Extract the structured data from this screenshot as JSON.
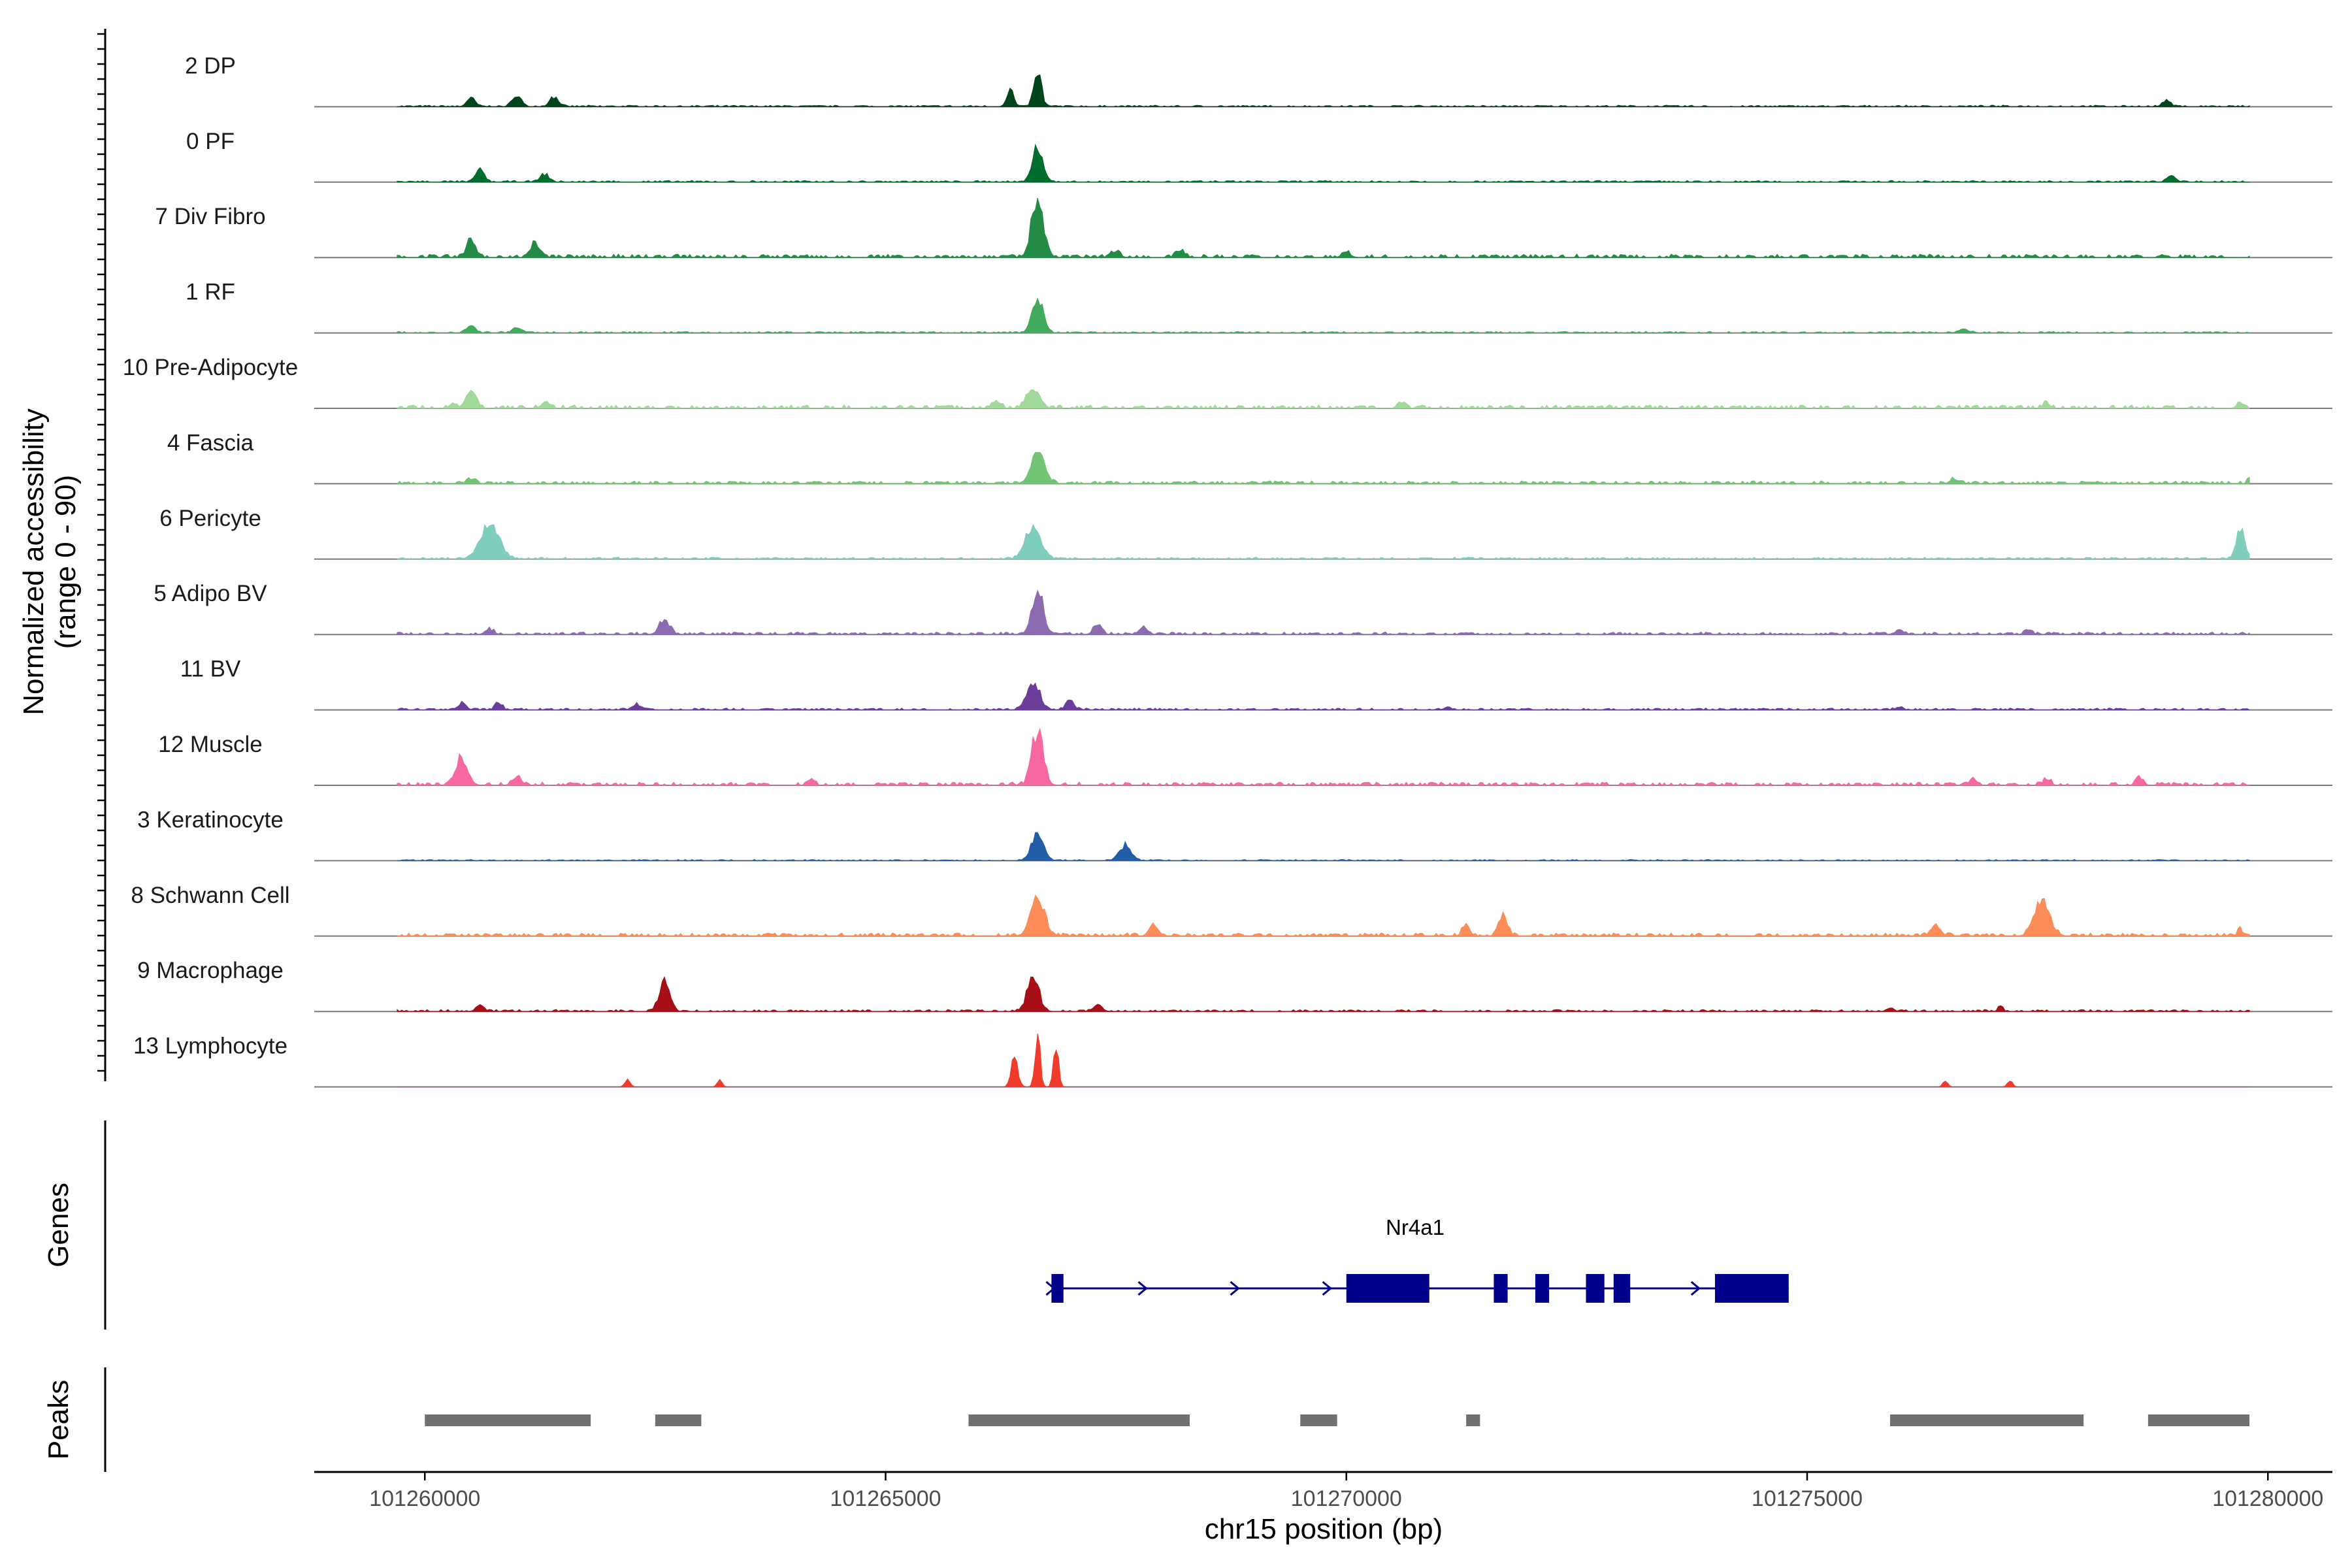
{
  "chart_data": {
    "type": "area",
    "region": {
      "chrom": "chr15",
      "start": 101258800,
      "end": 101280700
    },
    "xlabel": "chr15 position (bp)",
    "x_ticks": [
      101260000,
      101265000,
      101270000,
      101275000,
      101280000
    ],
    "x_tick_labels": [
      "101260000",
      "101265000",
      "101270000",
      "101275000",
      "101280000"
    ],
    "ylabel_line1": "Normalized accessibility",
    "ylabel_line2": "(range 0 - 90)",
    "ylim": [
      0,
      90
    ],
    "genes_label": "Genes",
    "peaks_label": "Peaks",
    "tracks": [
      {
        "name": "2 DP",
        "color": "#00441b",
        "max_frac": 0.55,
        "peaks": [
          [
            101260500,
            0.25,
            0.1
          ],
          [
            101261000,
            0.35,
            0.1
          ],
          [
            101261400,
            0.28,
            0.1
          ],
          [
            101266650,
            1.0,
            0.09
          ],
          [
            101266350,
            0.5,
            0.08
          ],
          [
            101278900,
            0.15,
            0.1
          ]
        ],
        "baseline": 0.04
      },
      {
        "name": "0 PF",
        "color": "#006d2c",
        "max_frac": 0.6,
        "peaks": [
          [
            101260600,
            0.35,
            0.1
          ],
          [
            101261300,
            0.2,
            0.1
          ],
          [
            101266650,
            1.0,
            0.12
          ],
          [
            101278950,
            0.18,
            0.1
          ]
        ],
        "baseline": 0.04
      },
      {
        "name": "7 Div Fibro",
        "color": "#238b45",
        "max_frac": 0.95,
        "peaks": [
          [
            101260500,
            0.3,
            0.1
          ],
          [
            101261200,
            0.25,
            0.1
          ],
          [
            101266650,
            1.0,
            0.14
          ],
          [
            101267500,
            0.1,
            0.1
          ],
          [
            101268200,
            0.1,
            0.1
          ],
          [
            101270000,
            0.07,
            0.1
          ]
        ],
        "baseline": 0.05
      },
      {
        "name": "1 RF",
        "color": "#41ab5d",
        "max_frac": 0.55,
        "peaks": [
          [
            101260500,
            0.2,
            0.1
          ],
          [
            101261000,
            0.15,
            0.1
          ],
          [
            101266650,
            1.0,
            0.13
          ],
          [
            101276700,
            0.1,
            0.12
          ]
        ],
        "baseline": 0.04
      },
      {
        "name": "10 Pre-Adipocyte",
        "color": "#a1d99b",
        "max_frac": 0.4,
        "peaks": [
          [
            101260300,
            0.15,
            0.08
          ],
          [
            101260500,
            0.65,
            0.12
          ],
          [
            101261300,
            0.2,
            0.1
          ],
          [
            101266600,
            0.8,
            0.15
          ],
          [
            101266200,
            0.3,
            0.1
          ],
          [
            101270600,
            0.2,
            0.1
          ],
          [
            101277600,
            0.2,
            0.08
          ],
          [
            101279700,
            0.2,
            0.08
          ]
        ],
        "baseline": 0.12
      },
      {
        "name": "4 Fascia",
        "color": "#74c476",
        "max_frac": 0.5,
        "peaks": [
          [
            101260500,
            0.15,
            0.1
          ],
          [
            101266650,
            1.0,
            0.16
          ],
          [
            101276600,
            0.15,
            0.1
          ],
          [
            101279800,
            0.2,
            0.05
          ]
        ],
        "baseline": 0.08
      },
      {
        "name": "6 Pericyte",
        "color": "#7fcdbb",
        "max_frac": 0.55,
        "peaks": [
          [
            101260700,
            1.0,
            0.22
          ],
          [
            101266600,
            0.9,
            0.18
          ],
          [
            101279700,
            0.9,
            0.1
          ]
        ],
        "baseline": 0.05
      },
      {
        "name": "5 Adipo BV",
        "color": "#8c6bb1",
        "max_frac": 0.7,
        "peaks": [
          [
            101260700,
            0.12,
            0.1
          ],
          [
            101262600,
            0.35,
            0.12
          ],
          [
            101266650,
            1.0,
            0.13
          ],
          [
            101267300,
            0.2,
            0.1
          ],
          [
            101267800,
            0.15,
            0.1
          ],
          [
            101276000,
            0.1,
            0.1
          ],
          [
            101277400,
            0.12,
            0.08
          ]
        ],
        "baseline": 0.05
      },
      {
        "name": "11 BV",
        "color": "#6a3d9a",
        "max_frac": 0.45,
        "peaks": [
          [
            101260400,
            0.2,
            0.1
          ],
          [
            101260800,
            0.25,
            0.08
          ],
          [
            101262300,
            0.2,
            0.1
          ],
          [
            101266600,
            1.0,
            0.15
          ],
          [
            101267000,
            0.3,
            0.1
          ],
          [
            101271100,
            0.12,
            0.08
          ],
          [
            101276000,
            0.1,
            0.08
          ]
        ],
        "baseline": 0.06
      },
      {
        "name": "12 Muscle",
        "color": "#f768a1",
        "max_frac": 0.9,
        "peaks": [
          [
            101260400,
            0.45,
            0.14
          ],
          [
            101261000,
            0.15,
            0.1
          ],
          [
            101264200,
            0.15,
            0.06
          ],
          [
            101266650,
            1.0,
            0.13
          ],
          [
            101276800,
            0.12,
            0.08
          ],
          [
            101277600,
            0.12,
            0.08
          ],
          [
            101278600,
            0.12,
            0.08
          ]
        ],
        "baseline": 0.05
      },
      {
        "name": "3 Keratinocyte",
        "color": "#225ea8",
        "max_frac": 0.45,
        "peaks": [
          [
            101266650,
            1.0,
            0.14
          ],
          [
            101267600,
            0.55,
            0.14
          ]
        ],
        "baseline": 0.04
      },
      {
        "name": "8 Schwann Cell",
        "color": "#fc8d59",
        "max_frac": 0.65,
        "peaks": [
          [
            101266650,
            1.0,
            0.16
          ],
          [
            101267900,
            0.25,
            0.1
          ],
          [
            101271300,
            0.3,
            0.08
          ],
          [
            101271700,
            0.5,
            0.1
          ],
          [
            101276400,
            0.2,
            0.12
          ],
          [
            101277550,
            0.9,
            0.18
          ],
          [
            101279700,
            0.2,
            0.05
          ]
        ],
        "baseline": 0.07
      },
      {
        "name": "9 Macrophage",
        "color": "#a50f15",
        "max_frac": 0.55,
        "peaks": [
          [
            101262600,
            1.0,
            0.12
          ],
          [
            101260600,
            0.15,
            0.1
          ],
          [
            101266600,
            1.0,
            0.14
          ],
          [
            101267300,
            0.2,
            0.1
          ],
          [
            101275900,
            0.12,
            0.08
          ],
          [
            101277100,
            0.12,
            0.06
          ]
        ],
        "baseline": 0.05
      },
      {
        "name": "13 Lymphocyte",
        "color": "#ef3b2c",
        "max_frac": 0.85,
        "peaks": [
          [
            101266400,
            0.55,
            0.08
          ],
          [
            101266650,
            1.0,
            0.06
          ],
          [
            101266850,
            0.75,
            0.06
          ],
          [
            101262200,
            0.15,
            0.06
          ],
          [
            101263200,
            0.12,
            0.06
          ],
          [
            101276500,
            0.12,
            0.06
          ],
          [
            101277200,
            0.12,
            0.06
          ]
        ],
        "baseline": 0.0
      }
    ],
    "gene": {
      "name": "Nr4a1",
      "start": 101266800,
      "end": 101274800,
      "strand": "+",
      "color": "#00008b",
      "exons": [
        [
          101266800,
          101266930
        ],
        [
          101270000,
          101270900
        ],
        [
          101271600,
          101271750
        ],
        [
          101272050,
          101272200
        ],
        [
          101272600,
          101272800
        ],
        [
          101272900,
          101273080
        ],
        [
          101274000,
          101274800
        ]
      ]
    },
    "peak_regions": [
      [
        101260000,
        101261800
      ],
      [
        101262500,
        101263000
      ],
      [
        101265900,
        101268300
      ],
      [
        101269500,
        101269900
      ],
      [
        101271300,
        101271450
      ],
      [
        101275900,
        101278000
      ],
      [
        101278700,
        101279800
      ]
    ],
    "peak_color": "#707070"
  }
}
